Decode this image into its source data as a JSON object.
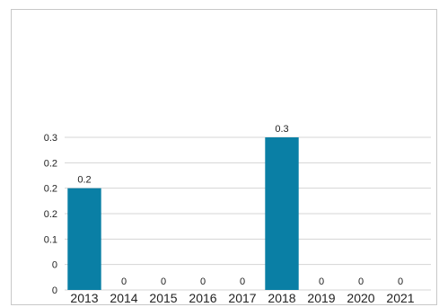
{
  "chart_data": {
    "type": "bar",
    "categories": [
      "2013",
      "2014",
      "2015",
      "2016",
      "2017",
      "2018",
      "2019",
      "2020",
      "2021"
    ],
    "values": [
      0.2,
      0,
      0,
      0,
      0,
      0.3,
      0,
      0,
      0
    ],
    "data_labels": [
      "0.2",
      "0",
      "0",
      "0",
      "0",
      "0.3",
      "0",
      "0",
      "0"
    ],
    "y_tick_labels": [
      "0",
      "0",
      "0.1",
      "0.2",
      "0.2",
      "0.2",
      "0.3"
    ],
    "ylim": [
      0,
      0.3
    ],
    "grid": true,
    "bar_color": "#0a7fa5",
    "legend": "none"
  }
}
